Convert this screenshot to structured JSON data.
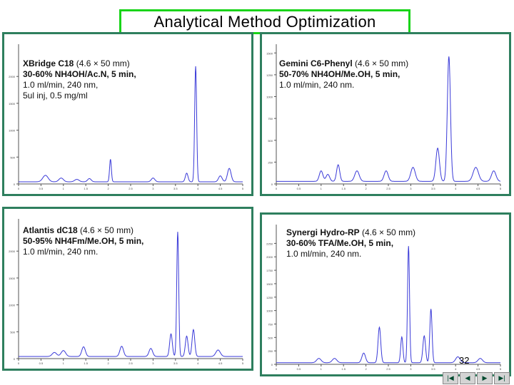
{
  "slide": {
    "title": "Analytical Method Optimization",
    "page_number": "32"
  },
  "colors": {
    "title_border": "#19d419",
    "panel_border": "#2e7f5e",
    "trace": "#3a3ad8",
    "axis": "#555555"
  },
  "nav_buttons": [
    {
      "name": "first",
      "icon": "first-slide-icon",
      "glyph": "|◀"
    },
    {
      "name": "previous",
      "icon": "previous-slide-icon",
      "glyph": "◀"
    },
    {
      "name": "next",
      "icon": "next-slide-icon",
      "glyph": "▶"
    },
    {
      "name": "last",
      "icon": "last-slide-icon",
      "glyph": "▶|"
    }
  ],
  "chart_data": [
    {
      "type": "line",
      "column": "XBridge C18",
      "conditions": [
        "(4.6 × 50 mm)",
        "30-60% NH4OH/Ac.N, 5 min,",
        "1.0 ml/min, 240 nm,",
        "5ul inj, 0.5 mg/ml"
      ],
      "xlim": [
        0,
        5
      ],
      "ylim": [
        0,
        2600
      ],
      "x_ticks": [
        0,
        0.5,
        1,
        1.5,
        2,
        2.5,
        3,
        3.5,
        4,
        4.5,
        5
      ],
      "y_ticks": [
        0,
        500,
        1000,
        1500,
        2000
      ],
      "baseline": 40,
      "peaks": [
        {
          "rt": 0.6,
          "height": 120,
          "width": 0.06
        },
        {
          "rt": 0.95,
          "height": 70,
          "width": 0.05
        },
        {
          "rt": 1.3,
          "height": 45,
          "width": 0.05
        },
        {
          "rt": 1.58,
          "height": 60,
          "width": 0.04
        },
        {
          "rt": 2.05,
          "height": 420,
          "width": 0.02
        },
        {
          "rt": 3.0,
          "height": 70,
          "width": 0.04
        },
        {
          "rt": 3.75,
          "height": 160,
          "width": 0.03
        },
        {
          "rt": 3.95,
          "height": 2150,
          "width": 0.022
        },
        {
          "rt": 4.5,
          "height": 110,
          "width": 0.04
        },
        {
          "rt": 4.7,
          "height": 250,
          "width": 0.04
        }
      ]
    },
    {
      "type": "line",
      "column": "Gemini C6-Phenyl",
      "conditions": [
        "(4.6 × 50 mm)",
        "50-70% NH4OH/Me.OH, 5 min,",
        "1.0 ml/min, 240 nm."
      ],
      "xlim": [
        0,
        5
      ],
      "ylim": [
        0,
        1600
      ],
      "x_ticks": [
        0,
        0.5,
        1,
        1.5,
        2,
        2.5,
        3,
        3.5,
        4,
        4.5,
        5
      ],
      "y_ticks": [
        0,
        250,
        500,
        750,
        1000,
        1250,
        1500
      ],
      "baseline": 30,
      "peaks": [
        {
          "rt": 1.0,
          "height": 120,
          "width": 0.04
        },
        {
          "rt": 1.15,
          "height": 80,
          "width": 0.04
        },
        {
          "rt": 1.38,
          "height": 190,
          "width": 0.035
        },
        {
          "rt": 1.8,
          "height": 120,
          "width": 0.05
        },
        {
          "rt": 2.45,
          "height": 120,
          "width": 0.045
        },
        {
          "rt": 3.05,
          "height": 160,
          "width": 0.05
        },
        {
          "rt": 3.6,
          "height": 380,
          "width": 0.04
        },
        {
          "rt": 3.85,
          "height": 1430,
          "width": 0.035
        },
        {
          "rt": 4.45,
          "height": 160,
          "width": 0.06
        },
        {
          "rt": 4.85,
          "height": 120,
          "width": 0.05
        }
      ]
    },
    {
      "type": "line",
      "column": "Atlantis dC18",
      "conditions": [
        "(4.6 × 50 mm)",
        "50-95% NH4Fm/Me.OH, 5 min,",
        "1.0 ml/min, 240 nm."
      ],
      "xlim": [
        0,
        5
      ],
      "ylim": [
        0,
        2600
      ],
      "x_ticks": [
        0,
        0.5,
        1,
        1.5,
        2,
        2.5,
        3,
        3.5,
        4,
        4.5,
        5
      ],
      "y_ticks": [
        0,
        500,
        1000,
        1500,
        2000
      ],
      "baseline": 40,
      "peaks": [
        {
          "rt": 0.8,
          "height": 75,
          "width": 0.05
        },
        {
          "rt": 1.0,
          "height": 110,
          "width": 0.05
        },
        {
          "rt": 1.45,
          "height": 180,
          "width": 0.04
        },
        {
          "rt": 2.3,
          "height": 190,
          "width": 0.04
        },
        {
          "rt": 2.95,
          "height": 150,
          "width": 0.04
        },
        {
          "rt": 3.4,
          "height": 420,
          "width": 0.03
        },
        {
          "rt": 3.55,
          "height": 2320,
          "width": 0.022
        },
        {
          "rt": 3.75,
          "height": 380,
          "width": 0.03
        },
        {
          "rt": 3.9,
          "height": 500,
          "width": 0.03
        },
        {
          "rt": 4.45,
          "height": 120,
          "width": 0.05
        }
      ]
    },
    {
      "type": "line",
      "column": "Synergi Hydro-RP",
      "conditions": [
        "(4.6 × 50 mm)",
        "30-60% TFA/Me.OH, 5 min,",
        "1.0 ml/min, 240 nm."
      ],
      "xlim": [
        0,
        5
      ],
      "ylim": [
        0,
        2600
      ],
      "x_ticks": [
        0,
        0.5,
        1,
        1.5,
        2,
        2.5,
        3,
        3.5,
        4,
        4.5,
        5
      ],
      "y_ticks": [
        0,
        250,
        500,
        750,
        1000,
        1250,
        1500,
        1750,
        2000,
        2250
      ],
      "baseline": 30,
      "peaks": [
        {
          "rt": 0.95,
          "height": 80,
          "width": 0.05
        },
        {
          "rt": 1.3,
          "height": 80,
          "width": 0.05
        },
        {
          "rt": 1.95,
          "height": 180,
          "width": 0.04
        },
        {
          "rt": 2.3,
          "height": 660,
          "width": 0.03
        },
        {
          "rt": 2.8,
          "height": 480,
          "width": 0.025
        },
        {
          "rt": 2.95,
          "height": 2170,
          "width": 0.022
        },
        {
          "rt": 3.3,
          "height": 500,
          "width": 0.03
        },
        {
          "rt": 3.45,
          "height": 1000,
          "width": 0.025
        },
        {
          "rt": 4.05,
          "height": 110,
          "width": 0.05
        },
        {
          "rt": 4.55,
          "height": 80,
          "width": 0.05
        }
      ]
    }
  ]
}
